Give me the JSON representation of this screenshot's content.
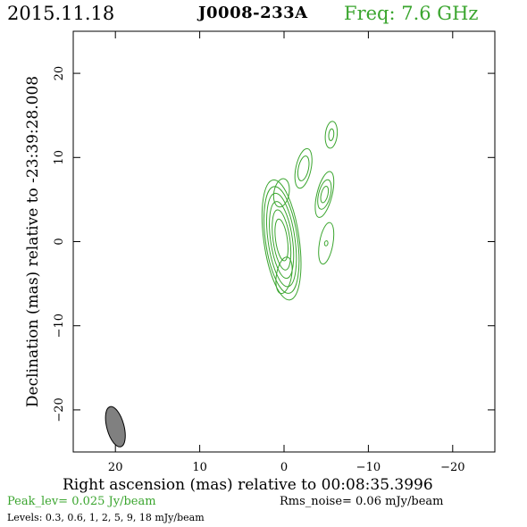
{
  "header": {
    "date": "2015.11.18",
    "source": "J0008-233A",
    "freq": "Freq: 7.6 GHz"
  },
  "chart_data": {
    "type": "contour",
    "xlabel": "Right ascension (mas) relative to 00:08:35.3996",
    "ylabel": "Declination (mas) relative to -23:39:28.008",
    "xlim": [
      25,
      -25
    ],
    "ylim": [
      -25,
      25
    ],
    "xticks": [
      20,
      10,
      0,
      -10,
      -20
    ],
    "yticks": [
      20,
      10,
      0,
      -10,
      -20
    ],
    "contour_color": "#3aa52e",
    "components": [
      {
        "name": "core",
        "x": 0.3,
        "y": 0.2,
        "rings": [
          [
            0.7,
            2.5
          ],
          [
            1.0,
            3.6
          ],
          [
            1.3,
            4.6
          ],
          [
            1.6,
            5.6
          ],
          [
            1.9,
            6.4
          ],
          [
            2.1,
            7.2
          ]
        ],
        "angle": -8
      },
      {
        "name": "core-extension-north",
        "x": 0.3,
        "y": 5.8,
        "rings": [
          [
            0.9,
            1.7
          ]
        ],
        "angle": 10
      },
      {
        "name": "core-extension-south",
        "x": 0.0,
        "y": -4.0,
        "rings": [
          [
            0.9,
            2.2
          ]
        ],
        "angle": 10
      },
      {
        "name": "comp-a",
        "x": -2.3,
        "y": 8.7,
        "rings": [
          [
            0.6,
            1.5
          ],
          [
            0.9,
            2.4
          ]
        ],
        "angle": 12
      },
      {
        "name": "comp-b",
        "x": -4.8,
        "y": 5.6,
        "rings": [
          [
            0.4,
            1.0
          ],
          [
            0.7,
            1.8
          ],
          [
            0.9,
            2.8
          ]
        ],
        "angle": 14
      },
      {
        "name": "comp-c",
        "x": -5.6,
        "y": 12.7,
        "rings": [
          [
            0.3,
            0.7
          ],
          [
            0.7,
            1.6
          ]
        ],
        "angle": 6
      },
      {
        "name": "comp-d",
        "x": -5.0,
        "y": -0.2,
        "rings": [
          [
            0.2,
            0.3
          ],
          [
            0.8,
            2.5
          ]
        ],
        "angle": 10
      }
    ],
    "beam": {
      "x": 20.0,
      "y": -22.0,
      "major": 4.5,
      "minor": 1.4,
      "angle": 15,
      "color": "#808080"
    }
  },
  "footer": {
    "peak": "Peak_lev=  0.025 Jy/beam",
    "rms": "Rms_noise= 0.06 mJy/beam",
    "levels": "Levels: 0.3, 0.6,    1,    2,    5,    9,   18 mJy/beam"
  }
}
